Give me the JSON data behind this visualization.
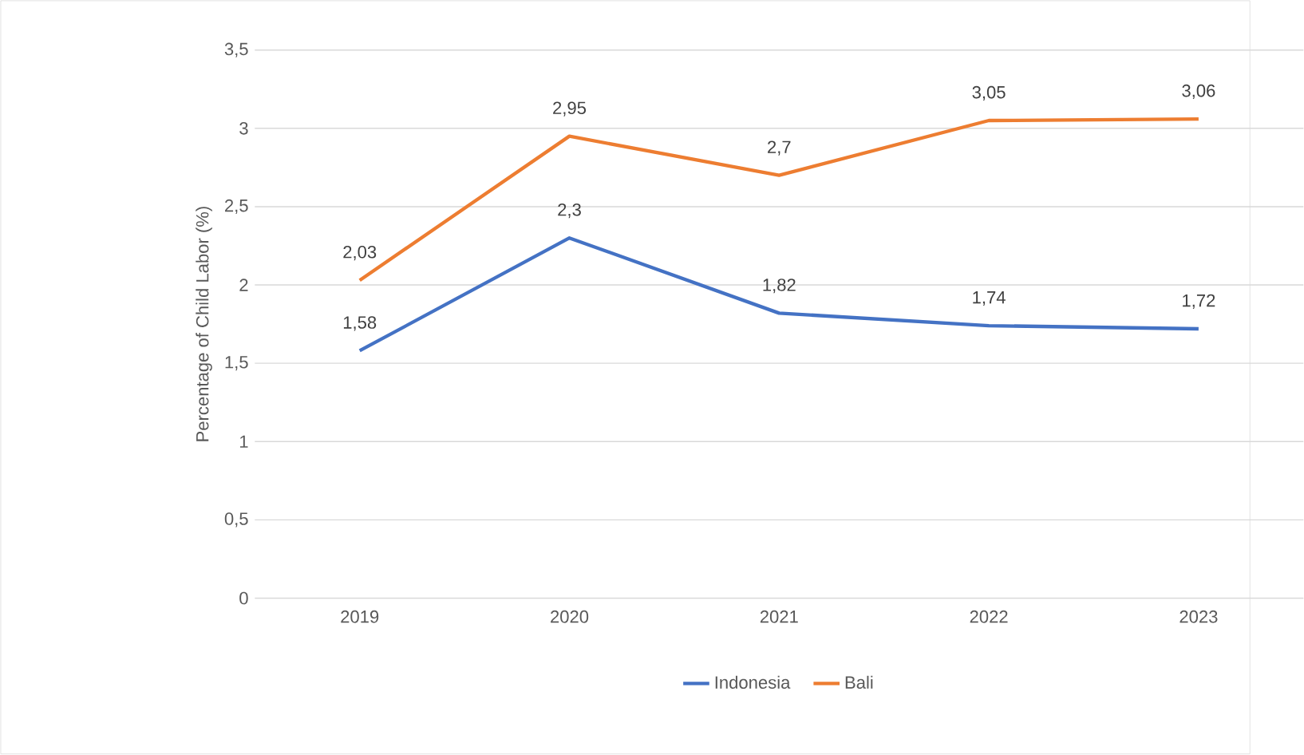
{
  "chart_data": {
    "type": "line",
    "ylabel": "Percentage of Child Labor (%)",
    "categories": [
      "2019",
      "2020",
      "2021",
      "2022",
      "2023"
    ],
    "series": [
      {
        "name": "Indonesia",
        "color": "#4472c4",
        "values": [
          1.58,
          2.3,
          1.82,
          1.74,
          1.72
        ],
        "value_labels": [
          "1,58",
          "2,3",
          "1,82",
          "1,74",
          "1,72"
        ]
      },
      {
        "name": "Bali",
        "color": "#ed7d31",
        "values": [
          2.03,
          2.95,
          2.7,
          3.05,
          3.06
        ],
        "value_labels": [
          "2,03",
          "2,95",
          "2,7",
          "3,05",
          "3,06"
        ]
      }
    ],
    "ylim": [
      0,
      3.5
    ],
    "yticks": [
      0,
      {
        "value": 0.5,
        "label": "0,5"
      },
      1,
      {
        "value": 1.5,
        "label": "1,5"
      },
      2,
      {
        "value": 2.5,
        "label": "2,5"
      },
      3,
      {
        "value": 3.5,
        "label": "3,5"
      }
    ],
    "grid": "y",
    "legend": "bottom",
    "marker": "none",
    "line_style": "solid"
  }
}
